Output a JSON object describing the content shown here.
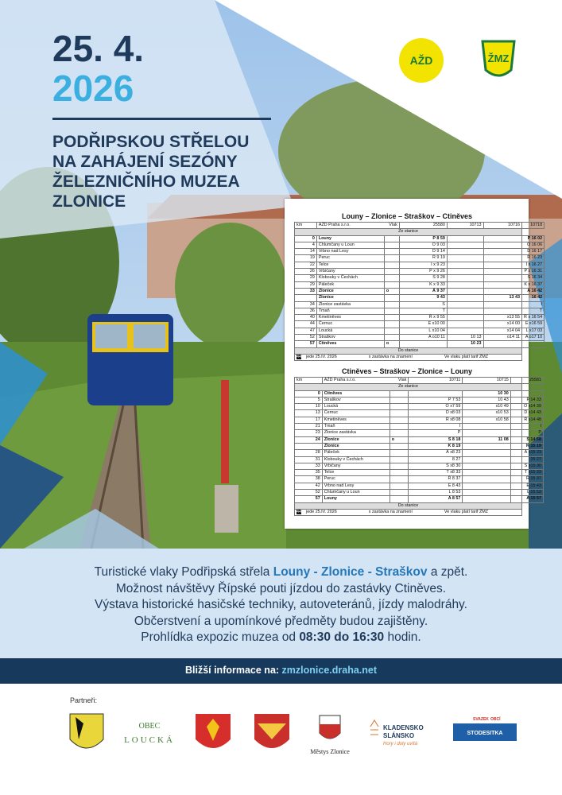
{
  "header": {
    "date": "25. 4.",
    "year": "2026",
    "title_lines": [
      "PODŘIPSKOU STŘELOU",
      "NA ZAHÁJENÍ SEZÓNY",
      "ŽELEZNIČNÍHO MUZEA",
      "ZLONICE"
    ]
  },
  "logos": [
    "AŽD",
    "ŽMZ"
  ],
  "timetables": [
    {
      "title": "Louny – Zlonice – Straškov – Ctiněves",
      "header": [
        "km",
        "AŽD Praha s.r.o.",
        "Vlak",
        "25580",
        "10713",
        "10716",
        "10718"
      ],
      "from_label": "Ze stanice",
      "to_label": "Do stanice",
      "bold_rows": [
        0,
        8,
        9,
        16
      ],
      "rows": [
        [
          "0",
          "Louny",
          null,
          "P 8 59",
          null,
          null,
          "P 16 02"
        ],
        [
          "4",
          "Chlumčany u Loun",
          null,
          "O 9 03",
          null,
          null,
          "O 16 06"
        ],
        [
          "14",
          "Vrbno nad Lesy",
          null,
          "D 9 14",
          null,
          null,
          "D 16 17"
        ],
        [
          "19",
          "Peruc",
          null,
          "Ř 9 19",
          null,
          null,
          "Ř 16 23"
        ],
        [
          "22",
          "Telce",
          null,
          "I x 9 23",
          null,
          null,
          "I x 16 27"
        ],
        [
          "26",
          "Vrbičany",
          null,
          "P x 9 26",
          null,
          null,
          "P x 16 31"
        ],
        [
          "29",
          "Klobouky v Čechách",
          null,
          "S 9 28",
          null,
          null,
          "S 16 34"
        ],
        [
          "29",
          "Páleček",
          null,
          "K x 9 33",
          null,
          null,
          "K x 16 37"
        ],
        [
          "33",
          "Zlonice",
          "o",
          "Á 9 37",
          null,
          null,
          "Á 16 42"
        ],
        [
          null,
          "Zlonice",
          null,
          "9 43",
          null,
          "13 43",
          "16 42"
        ],
        [
          "34",
          "Zlonice zastávka",
          null,
          "S",
          null,
          null,
          "I"
        ],
        [
          "36",
          "Tmaň",
          null,
          "T",
          null,
          null,
          "T"
        ],
        [
          "40",
          "Kmetiněves",
          null,
          "Ř x 9 55",
          null,
          "x13 55",
          "Ř x 16 54"
        ],
        [
          "44",
          "Černuc",
          null,
          "E x10 00",
          null,
          "x14 00",
          "E x16 59"
        ],
        [
          "47",
          "Loucká",
          null,
          "L x10 04",
          null,
          "x14 04",
          "L x17 03"
        ],
        [
          "52",
          "Straškov",
          null,
          "A o10 11",
          "10 13",
          "o14 11",
          "A o17 10"
        ],
        [
          "57",
          "Ctiněves",
          "o",
          null,
          "10 23",
          null,
          null
        ]
      ],
      "footer": [
        "44",
        "jede 25.IV. 2026",
        "x  zastávka na znamení",
        "Ve vlaku platí tarif ŽMZ"
      ]
    },
    {
      "title": "Ctiněves – Straškov – Zlonice – Louny",
      "header": [
        "km",
        "AŽD Praha s.r.o.",
        "Vlak",
        "10711",
        "10715",
        null,
        "25581"
      ],
      "from_label": "Ze stanice",
      "to_label": "Do stanice",
      "bold_rows": [
        0,
        7,
        8,
        16
      ],
      "rows": [
        [
          "0",
          "Ctiněves",
          null,
          null,
          "10 30",
          null,
          null
        ],
        [
          "5",
          "Straškov",
          null,
          "P 7 53",
          "10 43",
          null,
          "P 14 33"
        ],
        [
          "10",
          "Loucká",
          null,
          "O x7 59",
          "x10 49",
          null,
          "O x14 39"
        ],
        [
          "13",
          "Černuc",
          null,
          "D x8 03",
          "x10 53",
          null,
          "D x14 43"
        ],
        [
          "17",
          "Kmetiněves",
          null,
          "Ř x8 08",
          "x10 58",
          null,
          "Ř x14 48"
        ],
        [
          "21",
          "Tmaň",
          null,
          "I",
          null,
          null,
          "I"
        ],
        [
          "23",
          "Zlonice zastávka",
          null,
          "P",
          null,
          null,
          "P"
        ],
        [
          "24",
          "Zlonice",
          "o",
          "S 8 18",
          "11 08",
          null,
          "S 14 58"
        ],
        [
          null,
          "Zlonice",
          null,
          "K 8 19",
          null,
          null,
          "K 15 19"
        ],
        [
          "28",
          "Páleček",
          null,
          "Á x8 23",
          null,
          null,
          "Á x15 23"
        ],
        [
          "31",
          "Klobouky v Čechách",
          null,
          "8 27",
          null,
          null,
          "15 27"
        ],
        [
          "33",
          "Vrbičany",
          null,
          "S x8 30",
          null,
          null,
          "S x15 30"
        ],
        [
          "35",
          "Telce",
          null,
          "T x8 33",
          null,
          null,
          "T x15 33"
        ],
        [
          "38",
          "Peruc",
          null,
          "Ř 8 37",
          null,
          null,
          "Ř 15 37"
        ],
        [
          "42",
          "Vrbno nad Lesy",
          null,
          "E 8 43",
          null,
          null,
          "E 15 43"
        ],
        [
          "52",
          "Chlumčany u Loun",
          null,
          "L 8 53",
          null,
          null,
          "L 15 53"
        ],
        [
          "57",
          "Louny",
          null,
          "A 8 57",
          null,
          null,
          "A 15 57"
        ]
      ],
      "footer": [
        "44",
        "jede 25.IV. 2026",
        "x  zastávka na znamení",
        "Ve vlaku platí tarif ŽMZ"
      ]
    }
  ],
  "description": {
    "lines": [
      [
        {
          "text": "Turistické vlaky Podřipská střela "
        },
        {
          "text": "Louny - Zlonice - Straškov",
          "style": "em"
        },
        {
          "text": " a zpět."
        }
      ],
      [
        {
          "text": "Možnost návštěvy Řípské pouti jízdou do zastávky Ctiněves."
        }
      ],
      [
        {
          "text": "Výstava historické hasičské techniky, autoveteránů, jízdy malodráhy."
        }
      ],
      [
        {
          "text": "Občerstvení a upomínkové předměty budou zajištěny."
        }
      ],
      [
        {
          "text": "Prohlídka expozic muzea od "
        },
        {
          "text": "08:30 do 16:30",
          "style": "bold"
        },
        {
          "text": " hodin."
        }
      ]
    ]
  },
  "info": {
    "label": "Bližší informace na:",
    "link": "zmzlonice.draha.net"
  },
  "partners": {
    "label": "Partneři:",
    "obec": "OBEC",
    "loucka": "LOUCKÁ",
    "zlonice": "Městys Zlonice",
    "kladensko": "KLADENSKO",
    "slansko": "SLÁNSKO",
    "motto": "Hory i doly uvítá",
    "svazek": "SVAZEK",
    "obci": "OBCÍ",
    "stodesitka": "STODESITKA"
  }
}
